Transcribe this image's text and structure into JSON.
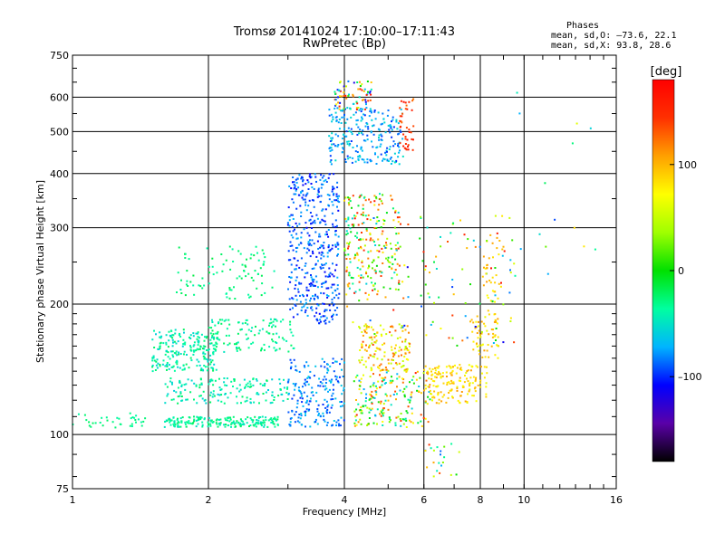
{
  "chart_data": {
    "type": "scatter",
    "title": "Tromsø 20141024 17:10:00–17:11:43",
    "subtitle": "RwPretec (Bp)",
    "xlabel": "Frequency [MHz]",
    "ylabel": "Stationary phase Virtual Height [km]",
    "x_scale": "log",
    "y_scale": "log",
    "xlim": [
      1,
      16
    ],
    "ylim": [
      75,
      750
    ],
    "x_ticks": [
      1,
      2,
      4,
      6,
      8,
      10,
      16
    ],
    "x_tick_labels": [
      "1",
      "2",
      "4",
      "6",
      "8",
      "10",
      "16"
    ],
    "y_ticks": [
      75,
      100,
      200,
      300,
      400,
      500,
      600,
      750
    ],
    "y_tick_labels": [
      "75",
      "100",
      "200",
      "300",
      "400",
      "500",
      "600",
      "750"
    ],
    "grid": true,
    "stats": {
      "heading": "Phases",
      "line_o": "mean, sd,O: –73.6, 22.1",
      "line_x": "mean, sd,X:  93.8, 28.6"
    },
    "colorbar": {
      "unit_label": "[deg]",
      "range": [
        -180,
        180
      ],
      "ticks": [
        100,
        0,
        -100
      ],
      "tick_labels": [
        "100",
        "0",
        "–100"
      ],
      "colormap": "rainbow",
      "colors": [
        "#000000",
        "#5a00a8",
        "#0000ff",
        "#00b4ff",
        "#00ffa0",
        "#00e000",
        "#a0ff00",
        "#ffff00",
        "#ffa000",
        "#ff3000",
        "#ff0000"
      ]
    },
    "clusters": [
      {
        "x": [
          1.0,
          1.45
        ],
        "y": [
          103,
          112
        ],
        "phase": [
          -40,
          -20
        ],
        "n": 35
      },
      {
        "x": [
          1.5,
          2.1
        ],
        "y": [
          140,
          175
        ],
        "phase": [
          -60,
          -20
        ],
        "n": 220
      },
      {
        "x": [
          1.6,
          2.9
        ],
        "y": [
          104,
          110
        ],
        "phase": [
          -50,
          -20
        ],
        "n": 190
      },
      {
        "x": [
          1.6,
          3.0
        ],
        "y": [
          118,
          135
        ],
        "phase": [
          -60,
          -20
        ],
        "n": 160
      },
      {
        "x": [
          1.7,
          2.8
        ],
        "y": [
          205,
          272
        ],
        "phase": [
          -40,
          -15
        ],
        "n": 90
      },
      {
        "x": [
          2.0,
          3.1
        ],
        "y": [
          155,
          185
        ],
        "phase": [
          -50,
          -20
        ],
        "n": 110
      },
      {
        "x": [
          3.0,
          3.9
        ],
        "y": [
          180,
          400
        ],
        "phase": [
          -110,
          -70
        ],
        "n": 430
      },
      {
        "x": [
          3.0,
          4.0
        ],
        "y": [
          104,
          150
        ],
        "phase": [
          -100,
          -60
        ],
        "n": 200
      },
      {
        "x": [
          3.7,
          5.4
        ],
        "y": [
          420,
          570
        ],
        "phase": [
          -100,
          -50
        ],
        "n": 240
      },
      {
        "x": [
          3.8,
          4.6
        ],
        "y": [
          560,
          660
        ],
        "phase": [
          -120,
          180
        ],
        "n": 70
      },
      {
        "x": [
          4.0,
          5.3
        ],
        "y": [
          210,
          360
        ],
        "phase": [
          -60,
          160
        ],
        "n": 220
      },
      {
        "x": [
          4.3,
          5.6
        ],
        "y": [
          140,
          180
        ],
        "phase": [
          40,
          130
        ],
        "n": 150
      },
      {
        "x": [
          4.2,
          6.2
        ],
        "y": [
          104,
          140
        ],
        "phase": [
          -80,
          160
        ],
        "n": 200
      },
      {
        "x": [
          5.3,
          5.7
        ],
        "y": [
          450,
          600
        ],
        "phase": [
          120,
          170
        ],
        "n": 40
      },
      {
        "x": [
          6.0,
          8.3
        ],
        "y": [
          118,
          145
        ],
        "phase": [
          60,
          110
        ],
        "n": 160
      },
      {
        "x": [
          7.6,
          8.8
        ],
        "y": [
          150,
          190
        ],
        "phase": [
          60,
          110
        ],
        "n": 60
      },
      {
        "x": [
          8.1,
          9.0
        ],
        "y": [
          200,
          290
        ],
        "phase": [
          70,
          110
        ],
        "n": 35
      },
      {
        "x": [
          6.0,
          7.2
        ],
        "y": [
          80,
          96
        ],
        "phase": [
          -90,
          150
        ],
        "n": 22
      },
      {
        "x": [
          4.0,
          9.5
        ],
        "y": [
          160,
          320
        ],
        "phase": [
          -120,
          170
        ],
        "n": 130
      },
      {
        "x": [
          9.5,
          14.5
        ],
        "y": [
          230,
          640
        ],
        "phase": [
          -100,
          120
        ],
        "n": 16
      }
    ]
  }
}
